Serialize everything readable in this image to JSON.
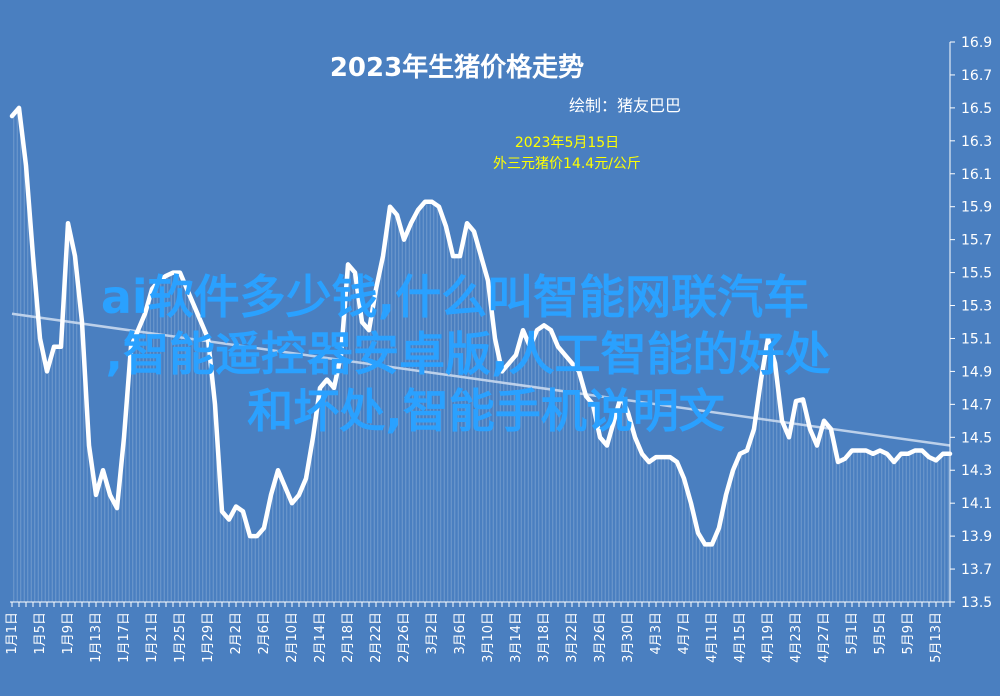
{
  "colors": {
    "background": "#4a7fc0",
    "line": "#ffffff",
    "trend": "#c9d9ee",
    "title": "#ffffff",
    "annotation": "#ffff00",
    "overlay_text": "#2aa1ff"
  },
  "chart_data": {
    "type": "line",
    "title": "2023年生猪价格走势",
    "subtitle": "绘制：猪友巴巴",
    "annotation": [
      "2023年5月15日",
      "外三元猪价14.4元/公斤"
    ],
    "y_axis_position": "right",
    "ylim": [
      13.5,
      16.9
    ],
    "yticks": [
      13.5,
      13.7,
      13.9,
      14.1,
      14.3,
      14.5,
      14.7,
      14.9,
      15.1,
      15.3,
      15.5,
      15.7,
      15.9,
      16.1,
      16.3,
      16.5,
      16.7,
      16.9
    ],
    "xlim": [
      1,
      135
    ],
    "xticks": [
      {
        "x": 1,
        "label": "1月1日"
      },
      {
        "x": 5,
        "label": "1月5日"
      },
      {
        "x": 9,
        "label": "1月9日"
      },
      {
        "x": 13,
        "label": "1月13日"
      },
      {
        "x": 17,
        "label": "1月17日"
      },
      {
        "x": 21,
        "label": "1月21日"
      },
      {
        "x": 25,
        "label": "1月25日"
      },
      {
        "x": 29,
        "label": "1月29日"
      },
      {
        "x": 33,
        "label": "2月2日"
      },
      {
        "x": 37,
        "label": "2月6日"
      },
      {
        "x": 41,
        "label": "2月10日"
      },
      {
        "x": 45,
        "label": "2月14日"
      },
      {
        "x": 49,
        "label": "2月18日"
      },
      {
        "x": 53,
        "label": "2月22日"
      },
      {
        "x": 57,
        "label": "2月26日"
      },
      {
        "x": 61,
        "label": "3月2日"
      },
      {
        "x": 65,
        "label": "3月6日"
      },
      {
        "x": 69,
        "label": "3月10日"
      },
      {
        "x": 73,
        "label": "3月14日"
      },
      {
        "x": 77,
        "label": "3月18日"
      },
      {
        "x": 81,
        "label": "3月22日"
      },
      {
        "x": 85,
        "label": "3月26日"
      },
      {
        "x": 89,
        "label": "3月30日"
      },
      {
        "x": 93,
        "label": "4月3日"
      },
      {
        "x": 97,
        "label": "4月7日"
      },
      {
        "x": 101,
        "label": "4月11日"
      },
      {
        "x": 105,
        "label": "4月15日"
      },
      {
        "x": 109,
        "label": "4月19日"
      },
      {
        "x": 113,
        "label": "4月23日"
      },
      {
        "x": 117,
        "label": "4月27日"
      },
      {
        "x": 121,
        "label": "5月1日"
      },
      {
        "x": 125,
        "label": "5月5日"
      },
      {
        "x": 129,
        "label": "5月9日"
      },
      {
        "x": 133,
        "label": "5月13日"
      }
    ],
    "series": [
      {
        "x": [
          1,
          2,
          3,
          4,
          5,
          6,
          7,
          8,
          9,
          10,
          11,
          12,
          13,
          14,
          15,
          16,
          17,
          18,
          19,
          20,
          21,
          22,
          23,
          24,
          25,
          26,
          27,
          28,
          29,
          30,
          31,
          32,
          33,
          34,
          35,
          36,
          37,
          38,
          39,
          40,
          41,
          42,
          43,
          44,
          45,
          46,
          47,
          48,
          49,
          50,
          51,
          52,
          53,
          54,
          55,
          56,
          57,
          58,
          59,
          60,
          61,
          62,
          63,
          64,
          65,
          66,
          67,
          68,
          69,
          70,
          71,
          72,
          73,
          74,
          75,
          76,
          77,
          78,
          79,
          80,
          81,
          82,
          83,
          84,
          85,
          86,
          87,
          88,
          89,
          90,
          91,
          92,
          93,
          94,
          95,
          96,
          97,
          98,
          99,
          100,
          101,
          102,
          103,
          104,
          105,
          106,
          107,
          108,
          109,
          110,
          111,
          112,
          113,
          114,
          115,
          116,
          117,
          118,
          119,
          120,
          121,
          122,
          123,
          124,
          125,
          126,
          127,
          128,
          129,
          130,
          131,
          132,
          133,
          134,
          135
        ],
        "values": [
          16.45,
          16.5,
          16.15,
          15.6,
          15.1,
          14.9,
          15.05,
          15.05,
          15.8,
          15.6,
          15.2,
          14.45,
          14.15,
          14.3,
          14.15,
          14.07,
          14.5,
          15.05,
          15.15,
          15.25,
          15.4,
          15.45,
          15.48,
          15.5,
          15.5,
          15.4,
          15.3,
          15.2,
          15.1,
          14.7,
          14.05,
          14.0,
          14.08,
          14.05,
          13.9,
          13.9,
          13.95,
          14.15,
          14.3,
          14.2,
          14.1,
          14.15,
          14.25,
          14.5,
          14.8,
          14.85,
          14.8,
          15.0,
          15.55,
          15.5,
          15.2,
          15.15,
          15.4,
          15.6,
          15.9,
          15.85,
          15.7,
          15.8,
          15.88,
          15.93,
          15.93,
          15.9,
          15.78,
          15.6,
          15.6,
          15.8,
          15.75,
          15.6,
          15.45,
          15.1,
          14.9,
          14.95,
          15.0,
          15.15,
          15.05,
          15.15,
          15.18,
          15.15,
          15.05,
          15.0,
          14.95,
          14.9,
          14.75,
          14.7,
          14.5,
          14.45,
          14.6,
          14.75,
          14.65,
          14.5,
          14.4,
          14.35,
          14.38,
          14.38,
          14.38,
          14.35,
          14.25,
          14.1,
          13.92,
          13.85,
          13.85,
          13.95,
          14.15,
          14.3,
          14.4,
          14.42,
          14.55,
          14.85,
          15.1,
          14.95,
          14.6,
          14.5,
          14.72,
          14.73,
          14.55,
          14.45,
          14.6,
          14.55,
          14.35,
          14.37,
          14.42,
          14.42,
          14.42,
          14.4,
          14.42,
          14.4,
          14.35,
          14.4,
          14.4,
          14.42,
          14.42,
          14.38,
          14.36,
          14.4,
          14.4
        ]
      }
    ],
    "trend": {
      "x": [
        1,
        135
      ],
      "y": [
        15.25,
        14.45
      ]
    }
  },
  "overlay_lines": [
    "ai软件多少钱,什么叫智能网联汽车",
    ",智能遥控器安卓版,人工智能的好处",
    "和坏处,智能手机说明文"
  ]
}
